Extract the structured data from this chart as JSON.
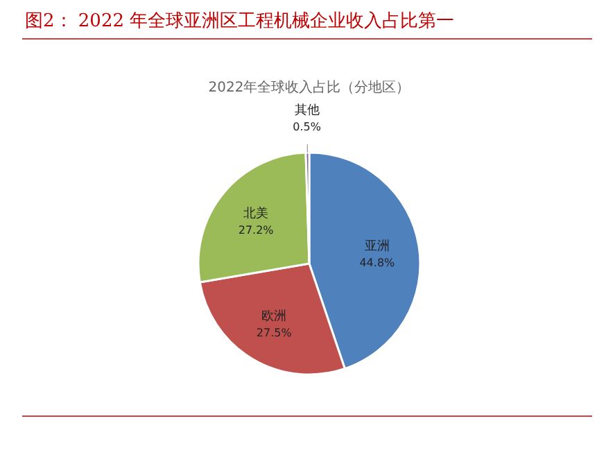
{
  "chart_data": {
    "type": "pie",
    "title": "图2：  2022 年全球亚洲区工程机械企业收入占比第一",
    "subtitle": "2022年全球收入占比（分地区）",
    "categories": [
      "亚洲",
      "欧洲",
      "北美",
      "其他"
    ],
    "values": [
      44.8,
      27.5,
      27.2,
      0.5
    ],
    "value_labels": [
      "44.8%",
      "27.5%",
      "27.2%",
      "0.5%"
    ],
    "colors": [
      "#4f81bd",
      "#c0504d",
      "#9bbb59",
      "#8064a2"
    ]
  }
}
